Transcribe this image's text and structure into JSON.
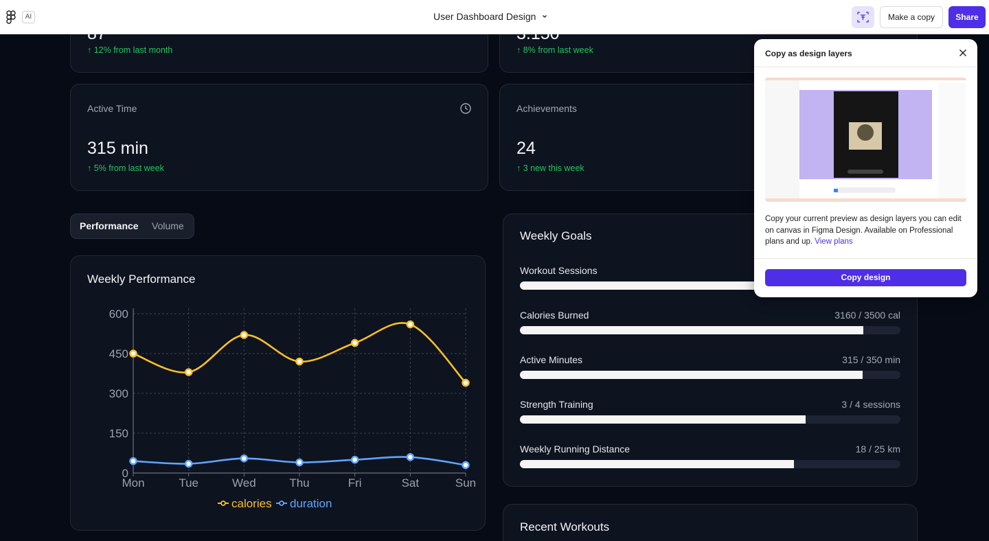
{
  "topbar": {
    "ai_label": "AI",
    "title": "User Dashboard Design",
    "make_copy_label": "Make a copy",
    "share_label": "Share"
  },
  "stats": {
    "top_left_change": "↑ 12% from last month",
    "top_middle_change": "↑ 8% from last week",
    "active_time": {
      "label": "Active Time",
      "value": "315 min",
      "change": "↑ 5% from last week"
    },
    "achievements": {
      "label": "Achievements",
      "value": "24",
      "change": "↑ 3 new this week"
    }
  },
  "tabs": {
    "performance": "Performance",
    "volume": "Volume"
  },
  "weekly_performance": {
    "title": "Weekly Performance",
    "legend_calories": "calories",
    "legend_duration": "duration"
  },
  "chart_data": {
    "type": "line",
    "title": "Weekly Performance",
    "x": [
      "Mon",
      "Tue",
      "Wed",
      "Thu",
      "Fri",
      "Sat",
      "Sun"
    ],
    "y_ticks": [
      "0",
      "150",
      "300",
      "450",
      "600"
    ],
    "ylim": [
      0,
      600
    ],
    "grid": true,
    "legend_position": "bottom",
    "series": [
      {
        "name": "calories",
        "color": "#fbbf24",
        "values": [
          450,
          380,
          520,
          420,
          490,
          560,
          340
        ]
      },
      {
        "name": "duration",
        "color": "#60a5fa",
        "values": [
          45,
          35,
          55,
          40,
          50,
          60,
          30
        ]
      }
    ]
  },
  "weekly_goals": {
    "title": "Weekly Goals",
    "goals": [
      {
        "label": "Workout Sessions",
        "value": "",
        "progress": 0.66
      },
      {
        "label": "Calories Burned",
        "value": "3160 / 3500 cal",
        "progress": 0.903
      },
      {
        "label": "Active Minutes",
        "value": "315 / 350 min",
        "progress": 0.9
      },
      {
        "label": "Strength Training",
        "value": "3 / 4 sessions",
        "progress": 0.75
      },
      {
        "label": "Weekly Running Distance",
        "value": "18 / 25 km",
        "progress": 0.72
      }
    ]
  },
  "recent_workouts": {
    "title": "Recent Workouts"
  },
  "popup": {
    "title": "Copy as design layers",
    "description": "Copy your current preview as design layers you can edit on canvas in Figma Design. Available on Professional plans and up.",
    "link": "View plans",
    "button": "Copy design"
  },
  "colors": {
    "accent": "#4f2ee8",
    "positive": "#22c55e",
    "calories": "#fbbf24",
    "duration": "#60a5fa"
  }
}
